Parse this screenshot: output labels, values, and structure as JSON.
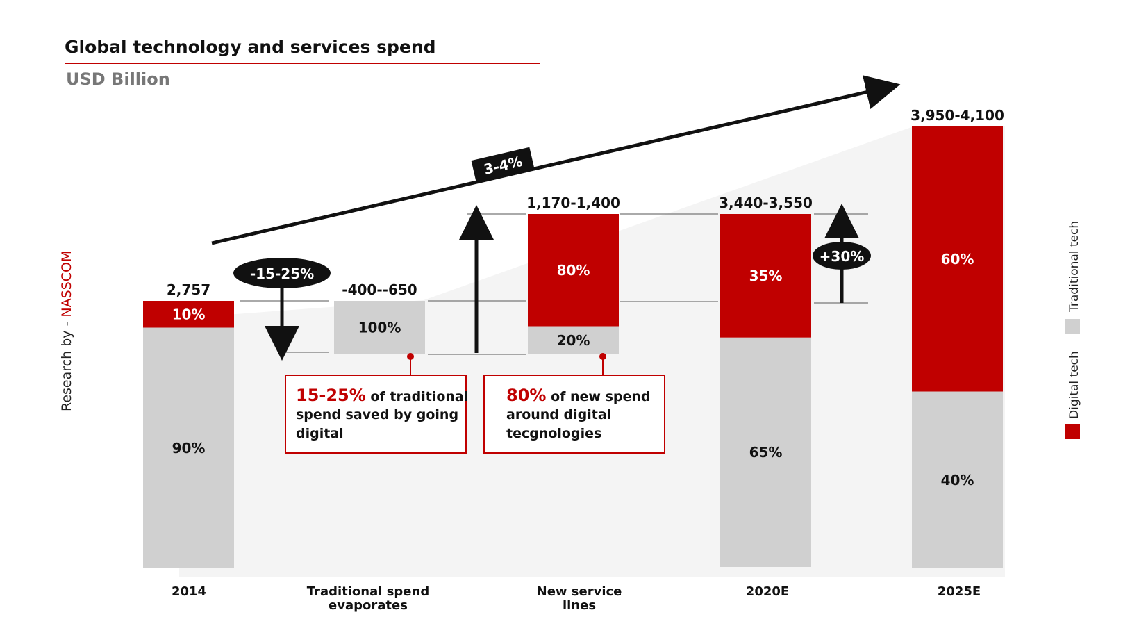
{
  "chart_data": {
    "type": "bar",
    "title": "Global technology and services spend",
    "subtitle": "USD Billion",
    "categories": [
      "2014",
      "Traditional spend evaporates",
      "New service lines",
      "2020E",
      "2025E"
    ],
    "category_lines": [
      [
        "2014"
      ],
      [
        "Traditional spend",
        "evaporates"
      ],
      [
        "New service",
        "lines"
      ],
      [
        "2020E"
      ],
      [
        "2025E"
      ]
    ],
    "totals": [
      "2,757",
      "-400--650",
      "1,170-1,400",
      "3,440-3,550",
      "3,950-4,100"
    ],
    "series": [
      {
        "name": "Digital tech",
        "color": "#c00000",
        "values": [
          10,
          null,
          80,
          35,
          60
        ],
        "labels": [
          "10%",
          "",
          "80%",
          "35%",
          "60%"
        ]
      },
      {
        "name": "Traditional tech",
        "color": "#d0d0d0",
        "values": [
          90,
          100,
          20,
          65,
          40
        ],
        "labels": [
          "90%",
          "100%",
          "20%",
          "65%",
          "40%"
        ]
      }
    ],
    "annotations": {
      "decline_badge": "-15-25%",
      "growth_badge": "+30%",
      "trend_badge": "3-4%",
      "notes": [
        {
          "highlight": "15-25%",
          "first_line_rest": " of traditional",
          "lines": [
            "spend saved by going",
            "digital"
          ]
        },
        {
          "highlight": "80%",
          "first_line_rest": " of new spend",
          "lines": [
            "around digital",
            "tecgnologies"
          ]
        }
      ]
    },
    "legend": {
      "placement": "right",
      "entries": [
        "Traditional tech",
        "Digital tech"
      ]
    },
    "grid": false
  },
  "credit": {
    "prefix": "Research by - ",
    "source": "NASSCOM"
  }
}
